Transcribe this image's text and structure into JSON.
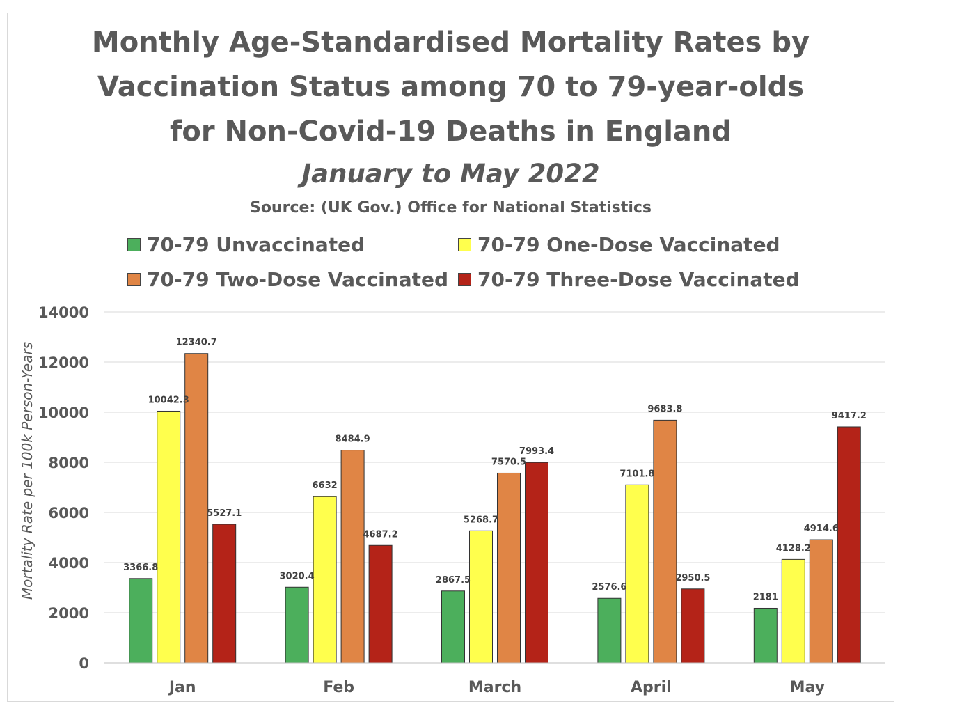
{
  "chart_data": {
    "type": "bar",
    "title_lines": [
      "Monthly Age-Standardised Mortality Rates by",
      "Vaccination Status among 70 to 79-year-olds",
      "for Non-Covid-19 Deaths in England"
    ],
    "subtitle": "January to May 2022",
    "source": "Source: (UK Gov.) Office for National Statistics",
    "ylabel": "Mortality Rate per 100k Person-Years",
    "xlabel": "",
    "ylim": [
      0,
      14000
    ],
    "yticks": [
      0,
      2000,
      4000,
      6000,
      8000,
      10000,
      12000,
      14000
    ],
    "grid": true,
    "legend_position": "top",
    "categories": [
      "Jan",
      "Feb",
      "March",
      "April",
      "May"
    ],
    "series": [
      {
        "name": "70-79 Unvaccinated",
        "color": "#4caf5c",
        "values": [
          3366.8,
          3020.4,
          2867.5,
          2576.6,
          2181
        ]
      },
      {
        "name": "70-79 One-Dose Vaccinated",
        "color": "#ffff4d",
        "values": [
          10042.3,
          6632,
          5268.7,
          7101.8,
          4128.2
        ]
      },
      {
        "name": "70-79 Two-Dose Vaccinated",
        "color": "#e08545",
        "values": [
          12340.7,
          8484.9,
          7570.5,
          9683.8,
          4914.6
        ]
      },
      {
        "name": "70-79 Three-Dose Vaccinated",
        "color": "#b42318",
        "values": [
          5527.1,
          4687.2,
          7993.4,
          2950.5,
          9417.2
        ]
      }
    ]
  }
}
